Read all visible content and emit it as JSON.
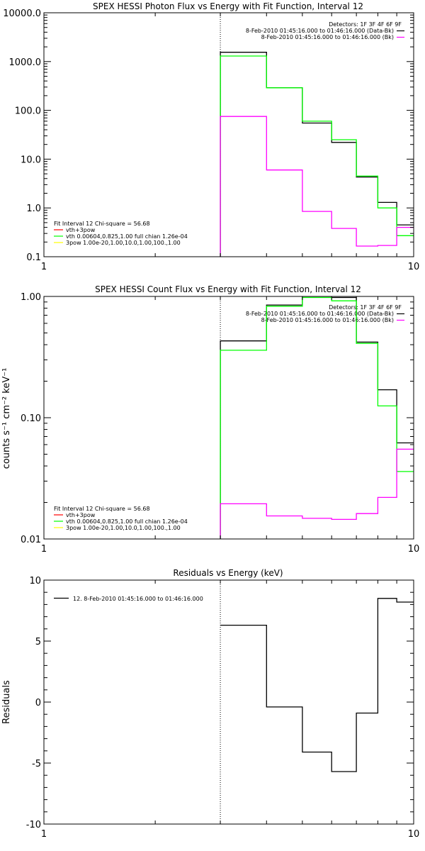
{
  "chart_data": [
    {
      "type": "line",
      "title": "SPEX HESSI Photon Flux vs Energy with Fit Function, Interval 12",
      "xscale": "log",
      "yscale": "log",
      "xlim": [
        1,
        10
      ],
      "ylim": [
        0.1,
        10000
      ],
      "xticks": [
        "1",
        "10"
      ],
      "yticks": [
        "0.1",
        "1.0",
        "10.0",
        "100.0",
        "1000.0",
        "10000.0"
      ],
      "detectors": "Detectors: 1F 3F 4F 6F 9F",
      "legend_top": [
        {
          "text": "8-Feb-2010 01:45:16.000 to 01:46:16.000 (Data-Bk)",
          "color": "#000000"
        },
        {
          "text": "8-Feb-2010 01:45:16.000 to 01:46:16.000 (Bk)",
          "color": "#ff00ff"
        }
      ],
      "legend_bottom": [
        {
          "text": "Fit Interval 12   Chi-square = 56.68",
          "color": ""
        },
        {
          "text": "vth+3pow",
          "color": "#ff0000"
        },
        {
          "text": "vth 0.00604,0.825,1.00  full chian 1.26e-04",
          "color": "#00ff00"
        },
        {
          "text": "3pow 1.00e-20,1.00,10.0,1.00,100.,1.00",
          "color": "#ffff00"
        }
      ],
      "bin_edges": [
        3,
        4,
        5,
        6,
        7,
        8,
        9,
        10
      ],
      "series": [
        {
          "name": "Data-Bk",
          "color": "#000000",
          "values": [
            1550,
            290,
            55,
            22,
            4.3,
            1.3,
            0.45
          ]
        },
        {
          "name": "Fit",
          "color": "#00ff00",
          "values": [
            1300,
            290,
            60,
            25,
            4.5,
            1.0,
            0.27
          ]
        },
        {
          "name": "Bk",
          "color": "#ff00ff",
          "values": [
            75,
            6,
            0.85,
            0.38,
            0.165,
            0.17,
            0.4
          ]
        }
      ]
    },
    {
      "type": "line",
      "title": "SPEX HESSI Count Flux vs Energy with Fit Function, Interval 12",
      "ylabel": "counts s⁻¹ cm⁻² keV⁻¹",
      "xscale": "log",
      "yscale": "log",
      "xlim": [
        1,
        10
      ],
      "ylim": [
        0.01,
        1.0
      ],
      "xticks": [
        "1",
        "10"
      ],
      "yticks": [
        "0.01",
        "0.10",
        "1.00"
      ],
      "detectors": "Detectors: 1F 3F 4F 6F 9F",
      "legend_top": [
        {
          "text": "8-Feb-2010 01:45:16.000 to 01:46:16.000 (Data-Bk)",
          "color": "#000000"
        },
        {
          "text": "8-Feb-2010 01:45:16.000 to 01:46:16.000 (Bk)",
          "color": "#ff00ff"
        }
      ],
      "legend_bottom": [
        {
          "text": "Fit Interval 12   Chi-square = 56.68",
          "color": ""
        },
        {
          "text": "vth+3pow",
          "color": "#ff0000"
        },
        {
          "text": "vth 0.00604,0.825,1.00  full chian 1.26e-04",
          "color": "#00ff00"
        },
        {
          "text": "3pow 1.00e-20,1.00,10.0,1.00,100.,1.00",
          "color": "#ffff00"
        }
      ],
      "bin_edges": [
        3,
        4,
        5,
        6,
        7,
        8,
        9,
        10
      ],
      "series": [
        {
          "name": "Data-Bk",
          "color": "#000000",
          "values": [
            0.43,
            0.85,
            1.0,
            0.98,
            0.42,
            0.17,
            0.062
          ]
        },
        {
          "name": "Fit",
          "color": "#00ff00",
          "values": [
            0.36,
            0.83,
            0.98,
            0.92,
            0.41,
            0.125,
            0.036
          ]
        },
        {
          "name": "Bk",
          "color": "#ff00ff",
          "values": [
            0.0195,
            0.0155,
            0.0148,
            0.0145,
            0.0162,
            0.022,
            0.055
          ]
        }
      ]
    },
    {
      "type": "line",
      "title": "Residuals vs Energy (keV)",
      "ylabel": "Residuals",
      "xscale": "log",
      "yscale": "linear",
      "xlim": [
        1,
        10
      ],
      "ylim": [
        -10,
        10
      ],
      "xticks": [
        "1",
        "10"
      ],
      "yticks": [
        "-10",
        "-5",
        "0",
        "5",
        "10"
      ],
      "legend": "12.  8-Feb-2010 01:45:16.000 to 01:46:16.000",
      "bin_edges": [
        3,
        4,
        5,
        6,
        7,
        8,
        9,
        10
      ],
      "series": [
        {
          "name": "",
          "color": "#000000",
          "values": [
            6.3,
            -0.4,
            -4.1,
            -5.7,
            -0.9,
            8.5,
            8.2
          ]
        }
      ]
    }
  ]
}
